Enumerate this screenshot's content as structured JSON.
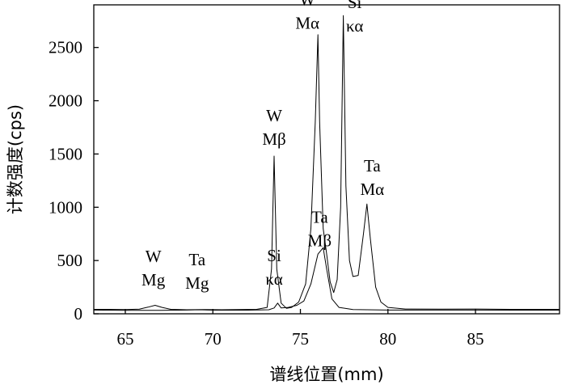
{
  "chart_data": {
    "type": "line",
    "xlabel": "谱线位置(mm)",
    "ylabel": "计数强度(cps)",
    "xlim": [
      63.2,
      89.8
    ],
    "ylim": [
      0,
      2900
    ],
    "xticks": [
      65,
      70,
      75,
      80,
      85
    ],
    "yticks": [
      0,
      500,
      1000,
      1500,
      2000,
      2500
    ],
    "grid": false,
    "legend": "none",
    "series": [
      {
        "points": [
          [
            63.2,
            42
          ],
          [
            64.0,
            42
          ],
          [
            65.0,
            40
          ],
          [
            65.8,
            44
          ],
          [
            66.3,
            62
          ],
          [
            66.7,
            80
          ],
          [
            67.1,
            60
          ],
          [
            67.6,
            42
          ],
          [
            68.5,
            38
          ],
          [
            69.5,
            40
          ],
          [
            70.5,
            38
          ],
          [
            71.5,
            40
          ],
          [
            72.5,
            42
          ],
          [
            73.1,
            60
          ],
          [
            73.35,
            420
          ],
          [
            73.5,
            1480
          ],
          [
            73.65,
            420
          ],
          [
            73.9,
            100
          ],
          [
            74.2,
            52
          ],
          [
            74.5,
            60
          ],
          [
            74.9,
            110
          ],
          [
            75.3,
            280
          ],
          [
            75.6,
            800
          ],
          [
            75.85,
            1800
          ],
          [
            76.0,
            2620
          ],
          [
            76.1,
            1800
          ],
          [
            76.3,
            800
          ],
          [
            76.5,
            560
          ],
          [
            76.7,
            300
          ],
          [
            76.9,
            200
          ],
          [
            77.1,
            320
          ],
          [
            77.3,
            1000
          ],
          [
            77.45,
            2800
          ],
          [
            77.6,
            1200
          ],
          [
            77.8,
            500
          ],
          [
            78.0,
            350
          ],
          [
            78.3,
            360
          ],
          [
            78.6,
            750
          ],
          [
            78.8,
            1030
          ],
          [
            79.0,
            700
          ],
          [
            79.3,
            250
          ],
          [
            79.6,
            110
          ],
          [
            80.0,
            60
          ],
          [
            81.0,
            45
          ],
          [
            83.0,
            44
          ],
          [
            85.0,
            45
          ],
          [
            87.0,
            42
          ],
          [
            89.8,
            42
          ]
        ]
      },
      {
        "points": [
          [
            63.2,
            35
          ],
          [
            65.0,
            33
          ],
          [
            67.0,
            33
          ],
          [
            68.5,
            35
          ],
          [
            69.2,
            38
          ],
          [
            70.0,
            34
          ],
          [
            72.0,
            34
          ],
          [
            73.2,
            38
          ],
          [
            73.5,
            55
          ],
          [
            73.7,
            100
          ],
          [
            73.9,
            55
          ],
          [
            74.3,
            60
          ],
          [
            74.8,
            80
          ],
          [
            75.2,
            120
          ],
          [
            75.6,
            280
          ],
          [
            76.0,
            560
          ],
          [
            76.3,
            620
          ],
          [
            76.5,
            420
          ],
          [
            76.8,
            140
          ],
          [
            77.2,
            60
          ],
          [
            78.0,
            40
          ],
          [
            80.0,
            35
          ],
          [
            85.0,
            35
          ],
          [
            89.8,
            34
          ]
        ]
      }
    ],
    "annotations": [
      {
        "lines": [
          "W",
          "Mg"
        ],
        "x": 66.6,
        "y": 485
      },
      {
        "lines": [
          "Ta",
          "Mg"
        ],
        "x": 69.1,
        "y": 455
      },
      {
        "lines": [
          "Si",
          "κα"
        ],
        "x": 73.5,
        "y": 495
      },
      {
        "lines": [
          "W",
          "Mβ"
        ],
        "x": 73.5,
        "y": 1805
      },
      {
        "lines": [
          "Ta",
          "Mβ"
        ],
        "x": 76.1,
        "y": 855
      },
      {
        "lines": [
          "W",
          "Mα"
        ],
        "x": 75.4,
        "y": 2895
      },
      {
        "lines": [
          "Si",
          "κα"
        ],
        "x": 78.1,
        "y": 2870
      },
      {
        "lines": [
          "Ta",
          "Mα"
        ],
        "x": 79.1,
        "y": 1335
      }
    ]
  }
}
